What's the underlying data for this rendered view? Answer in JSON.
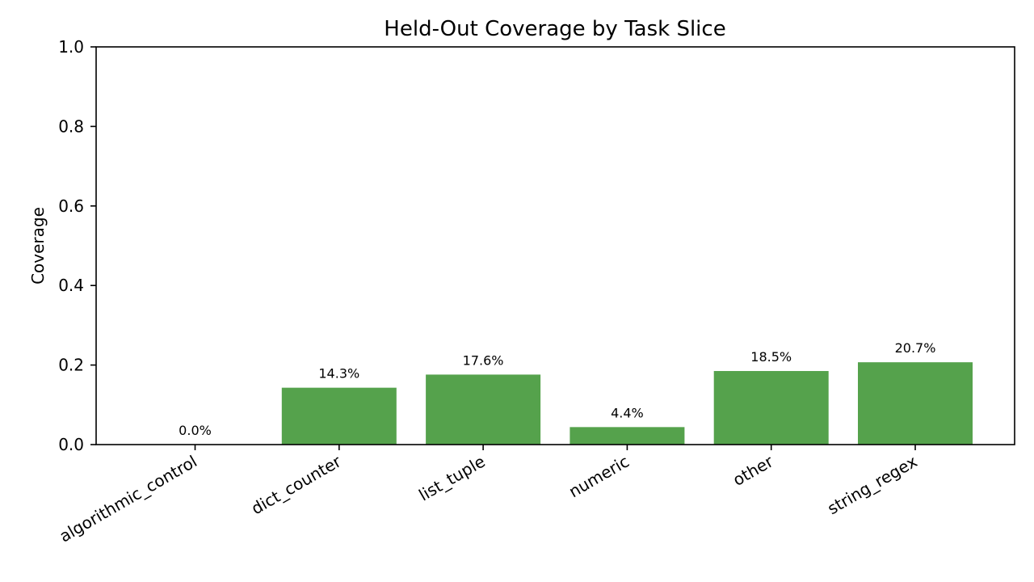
{
  "chart_data": {
    "type": "bar",
    "title": "Held-Out Coverage by Task Slice",
    "xlabel": "",
    "ylabel": "Coverage",
    "categories": [
      "algorithmic_control",
      "dict_counter",
      "list_tuple",
      "numeric",
      "other",
      "string_regex"
    ],
    "values": [
      0.0,
      0.143,
      0.176,
      0.044,
      0.185,
      0.207
    ],
    "data_labels": [
      "0.0%",
      "14.3%",
      "17.6%",
      "4.4%",
      "18.5%",
      "20.7%"
    ],
    "ylim": [
      0,
      1.0
    ],
    "yticks": [
      0.0,
      0.2,
      0.4,
      0.6,
      0.8,
      1.0
    ],
    "ytick_labels": [
      "0.0",
      "0.2",
      "0.4",
      "0.6",
      "0.8",
      "1.0"
    ],
    "bar_color": "#55a24c",
    "grid": false,
    "legend": "none"
  }
}
